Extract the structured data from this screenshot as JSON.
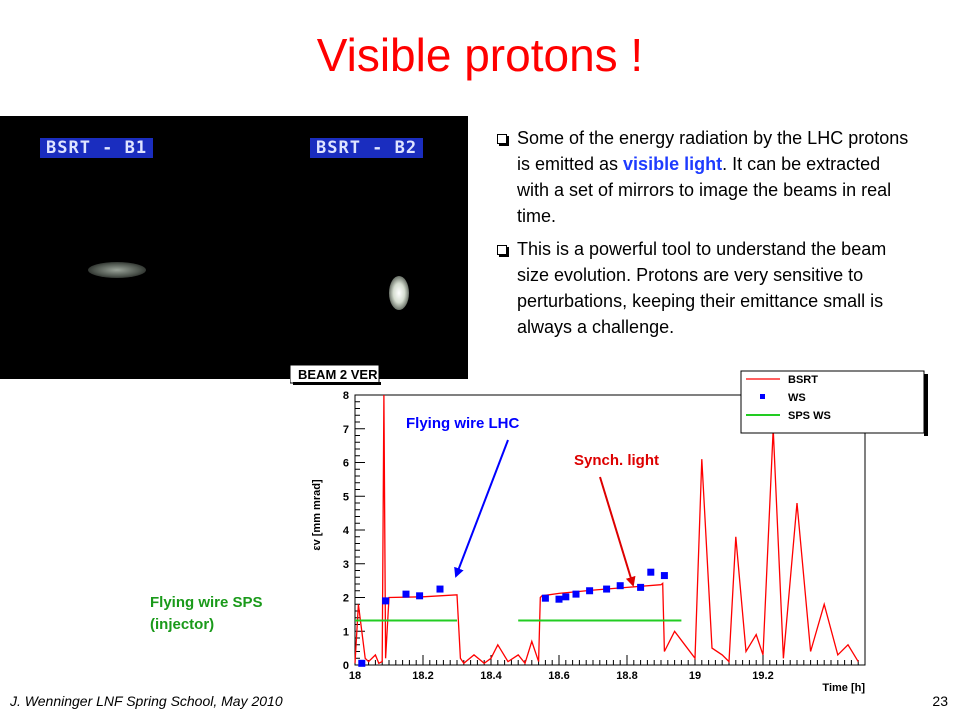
{
  "slide": {
    "title": "Visible protons !",
    "footer": "J. Wenninger LNF Spring School, May 2010",
    "page_number": "23"
  },
  "image": {
    "label_b1": "BSRT - B1",
    "label_b2": "BSRT - B2"
  },
  "bullets": [
    {
      "pre": "Some of the energy radiation by the LHC protons is emitted as ",
      "highlight": "visible light",
      "post": ". It can be extracted with a set of mirrors to image the beams in real time."
    },
    {
      "pre": "This is a powerful tool to understand the beam size evolution. Protons are very sensitive to perturbations, keeping their emittance small is always a challenge.",
      "highlight": "",
      "post": ""
    }
  ],
  "annotations": {
    "flying_wire_lhc": "Flying wire LHC",
    "synch_light": "Synch. light",
    "flying_wire_sps_1": "Flying wire SPS",
    "flying_wire_sps_2": "(injector)"
  },
  "colors": {
    "title": "#ff0000",
    "bsrt": "#ff0000",
    "ws": "#0000ff",
    "sps_ws": "#22cc22",
    "lhc_arrow": "#0000ff",
    "synch_arrow": "#dd0000",
    "sps_label": "#1a9a1a"
  },
  "chart_data": {
    "type": "line",
    "title": "BEAM 2 VER",
    "xlabel": "Time [h]",
    "ylabel": "εv [mm mrad]",
    "xlim": [
      18,
      19.5
    ],
    "ylim": [
      0,
      8
    ],
    "x_ticks": [
      "18",
      "18.2",
      "18.4",
      "18.6",
      "18.8",
      "19",
      "19.2"
    ],
    "y_ticks": [
      "0",
      "1",
      "2",
      "3",
      "4",
      "5",
      "6",
      "7",
      "8"
    ],
    "grid": false,
    "legend_position": "top-right",
    "series": [
      {
        "name": "BSRT",
        "kind": "line",
        "color": "#ff0000",
        "x": [
          18.0,
          18.01,
          18.03,
          18.04,
          18.06,
          18.07,
          18.08,
          18.085,
          18.09,
          18.1,
          18.2,
          18.3,
          18.31,
          18.32,
          18.35,
          18.38,
          18.4,
          18.42,
          18.45,
          18.48,
          18.5,
          18.52,
          18.54,
          18.545,
          18.55,
          18.6,
          18.7,
          18.8,
          18.9,
          18.905,
          18.91,
          18.94,
          18.97,
          19.0,
          19.02,
          19.05,
          19.08,
          19.1,
          19.12,
          19.15,
          19.18,
          19.2,
          19.23,
          19.26,
          19.3,
          19.34,
          19.38,
          19.42,
          19.45,
          19.48
        ],
        "y": [
          0.05,
          1.8,
          0.2,
          0.1,
          0.3,
          0.05,
          0.1,
          8.0,
          0.2,
          2.0,
          2.02,
          2.08,
          0.2,
          0.05,
          0.3,
          0.05,
          0.2,
          0.6,
          0.1,
          0.3,
          0.05,
          0.7,
          0.1,
          2.0,
          2.05,
          2.12,
          2.22,
          2.3,
          2.38,
          2.42,
          0.4,
          1.0,
          0.6,
          0.2,
          6.1,
          0.5,
          0.3,
          0.1,
          3.8,
          0.4,
          0.9,
          0.3,
          7.0,
          0.2,
          4.8,
          0.4,
          1.8,
          0.3,
          0.6,
          0.1
        ]
      },
      {
        "name": "WS",
        "kind": "scatter",
        "color": "#0000ff",
        "x": [
          18.02,
          18.09,
          18.15,
          18.19,
          18.25,
          18.56,
          18.6,
          18.62,
          18.65,
          18.69,
          18.74,
          18.78,
          18.84,
          18.87,
          18.91
        ],
        "y": [
          0.05,
          1.9,
          2.1,
          2.05,
          2.25,
          1.98,
          1.95,
          2.02,
          2.1,
          2.2,
          2.25,
          2.35,
          2.3,
          2.75,
          2.65
        ]
      },
      {
        "name": "SPS WS",
        "kind": "segments",
        "color": "#22cc22",
        "segments": [
          {
            "x": [
              18.0,
              18.3
            ],
            "y": [
              1.32,
              1.32
            ]
          },
          {
            "x": [
              18.48,
              18.96
            ],
            "y": [
              1.32,
              1.32
            ]
          }
        ]
      }
    ]
  }
}
